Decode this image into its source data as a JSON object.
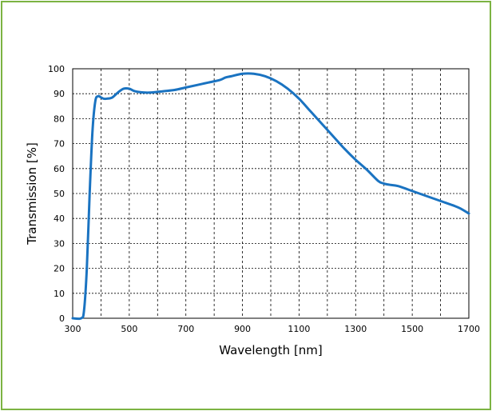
{
  "colors": {
    "frame": "#7cb342",
    "series": "#1a73c1",
    "grid": "#000000"
  },
  "chart_data": {
    "type": "line",
    "title": "",
    "xlabel": "Wavelength [nm]",
    "ylabel": "Transmission [%]",
    "xlim": [
      300,
      1700
    ],
    "ylim": [
      0,
      100
    ],
    "xticks": [
      300,
      500,
      700,
      900,
      1100,
      1300,
      1500,
      1700
    ],
    "xtick_labels": [
      "300",
      "500",
      "700",
      "900",
      "1100",
      "1300",
      "1500",
      "1700"
    ],
    "xgrid": [
      300,
      400,
      500,
      600,
      700,
      800,
      900,
      1000,
      1100,
      1200,
      1300,
      1400,
      1500,
      1600,
      1700
    ],
    "yticks": [
      0,
      10,
      20,
      30,
      40,
      50,
      60,
      70,
      80,
      90,
      100
    ],
    "ytick_labels": [
      "0",
      "10",
      "20",
      "30",
      "40",
      "50",
      "60",
      "70",
      "80",
      "90",
      "100"
    ],
    "grid": true,
    "series": [
      {
        "x": [
          300,
          330,
          340,
          350,
          360,
          370,
          380,
          390,
          400,
          410,
          420,
          440,
          460,
          480,
          500,
          520,
          550,
          580,
          620,
          660,
          700,
          740,
          780,
          820,
          840,
          860,
          900,
          940,
          980,
          1020,
          1060,
          1100,
          1140,
          1180,
          1220,
          1260,
          1300,
          1340,
          1380,
          1400,
          1420,
          1450,
          1500,
          1550,
          1600,
          1650,
          1670,
          1700
        ],
        "y": [
          0,
          0,
          3,
          20,
          50,
          75,
          87,
          89,
          88.5,
          88,
          88,
          88.5,
          90.5,
          92,
          92,
          91,
          90.5,
          90.5,
          91,
          91.5,
          92.5,
          93.5,
          94.5,
          95.5,
          96.5,
          97,
          98,
          98,
          97,
          95,
          92,
          88,
          83,
          78,
          73,
          68,
          63.5,
          59.5,
          55,
          54,
          53.5,
          53,
          51,
          49,
          47,
          45,
          44,
          42
        ]
      }
    ]
  }
}
